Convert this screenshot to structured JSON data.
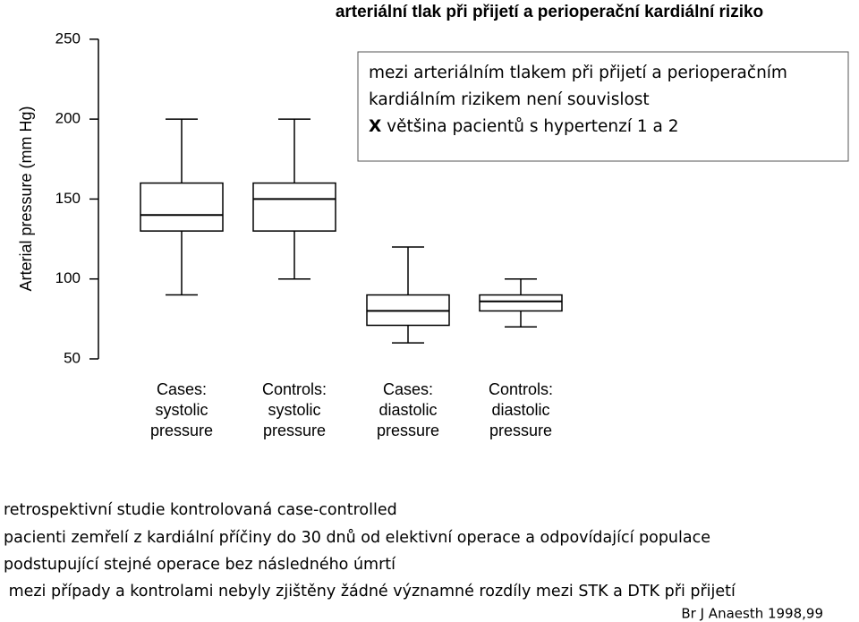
{
  "chart_data": {
    "type": "box",
    "title": "arteriální tlak při přijetí a perioperační kardiální riziko",
    "y_label": "Arterial pressure (mm Hg)",
    "categories": [
      [
        "Cases:",
        "systolic",
        "pressure"
      ],
      [
        "Controls:",
        "systolic",
        "pressure"
      ],
      [
        "Cases:",
        "diastolic",
        "pressure"
      ],
      [
        "Controls:",
        "diastolic",
        "pressure"
      ]
    ],
    "min": [
      90,
      100,
      60,
      70
    ],
    "q1": [
      130,
      130,
      71,
      80
    ],
    "median": [
      140,
      150,
      80,
      86
    ],
    "q3": [
      160,
      160,
      90,
      90
    ],
    "max": [
      200,
      200,
      120,
      100
    ],
    "color": "#000000",
    "ylim": [
      44,
      256
    ],
    "yticks": [
      50,
      100,
      150,
      200,
      250
    ],
    "annotation": [
      "mezi arteriálním tlakem při přijetí a perioperačním",
      "kardiálním rizikem není souvislost"
    ],
    "annotation_mark": "X",
    "annotation_tail": "většina pacientů s hypertenzí 1 a 2"
  },
  "notes": [
    "retrospektivní studie kontrolovaná case-controlled",
    "pacienti zemřelí z kardiální příčiny do 30 dnů od elektivní operace a odpovídající populace",
    "podstupující stejné operace bez následného úmrtí",
    " mezi případy a kontrolami nebyly zjištěny žádné významné rozdíly mezi STK a DTK při přijetí"
  ],
  "citation": "Br J Anaesth 1998,99"
}
